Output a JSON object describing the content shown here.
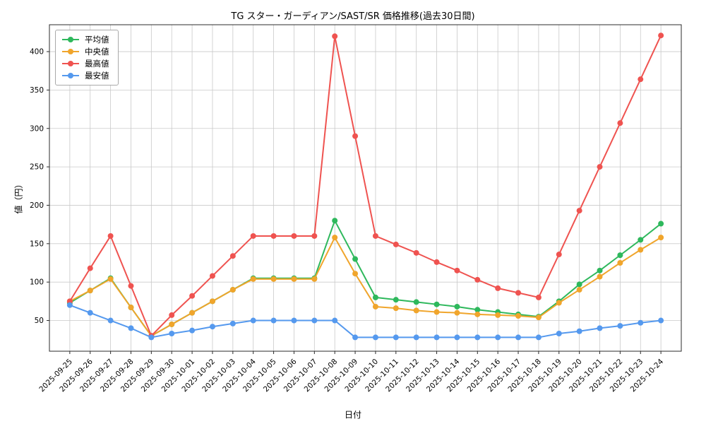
{
  "chart_data": {
    "type": "line",
    "title": "TG スター・ガーディアン/SAST/SR 価格推移(過去30日間)",
    "xlabel": "日付",
    "ylabel": "値（円）",
    "x": [
      "2025-09-25",
      "2025-09-26",
      "2025-09-27",
      "2025-09-28",
      "2025-09-29",
      "2025-09-30",
      "2025-10-01",
      "2025-10-02",
      "2025-10-03",
      "2025-10-04",
      "2025-10-05",
      "2025-10-06",
      "2025-10-07",
      "2025-10-08",
      "2025-10-09",
      "2025-10-10",
      "2025-10-11",
      "2025-10-12",
      "2025-10-13",
      "2025-10-14",
      "2025-10-15",
      "2025-10-16",
      "2025-10-17",
      "2025-10-18",
      "2025-10-19",
      "2025-10-20",
      "2025-10-21",
      "2025-10-22",
      "2025-10-23",
      "2025-10-24"
    ],
    "series": [
      {
        "name": "平均値",
        "color": "#2eb85c",
        "values": [
          73,
          89,
          105,
          67,
          30,
          45,
          60,
          75,
          90,
          105,
          105,
          105,
          105,
          180,
          130,
          80,
          77,
          74,
          71,
          68,
          64,
          61,
          58,
          55,
          75,
          97,
          115,
          135,
          155,
          176
        ]
      },
      {
        "name": "中央値",
        "color": "#f0a52c",
        "values": [
          75,
          89,
          104,
          67,
          30,
          45,
          60,
          75,
          90,
          104,
          104,
          104,
          104,
          158,
          111,
          68,
          66,
          63,
          61,
          60,
          58,
          57,
          56,
          54,
          73,
          90,
          107,
          125,
          142,
          158
        ]
      },
      {
        "name": "最高値",
        "color": "#ef5350",
        "values": [
          75,
          118,
          160,
          95,
          30,
          57,
          82,
          108,
          134,
          160,
          160,
          160,
          160,
          420,
          290,
          160,
          149,
          138,
          126,
          115,
          103,
          92,
          86,
          80,
          136,
          193,
          250,
          307,
          364,
          421
        ]
      },
      {
        "name": "最安値",
        "color": "#5599ee",
        "values": [
          70,
          60,
          50,
          40,
          28,
          33,
          37,
          42,
          46,
          50,
          50,
          50,
          50,
          50,
          28,
          28,
          28,
          28,
          28,
          28,
          28,
          28,
          28,
          28,
          33,
          36,
          40,
          43,
          47,
          50
        ]
      }
    ],
    "yticks": [
      50,
      100,
      150,
      200,
      250,
      300,
      350,
      400
    ],
    "ylim": [
      10,
      435
    ],
    "grid": true,
    "legend_position": "upper-left",
    "xtick_rotation": 45
  }
}
